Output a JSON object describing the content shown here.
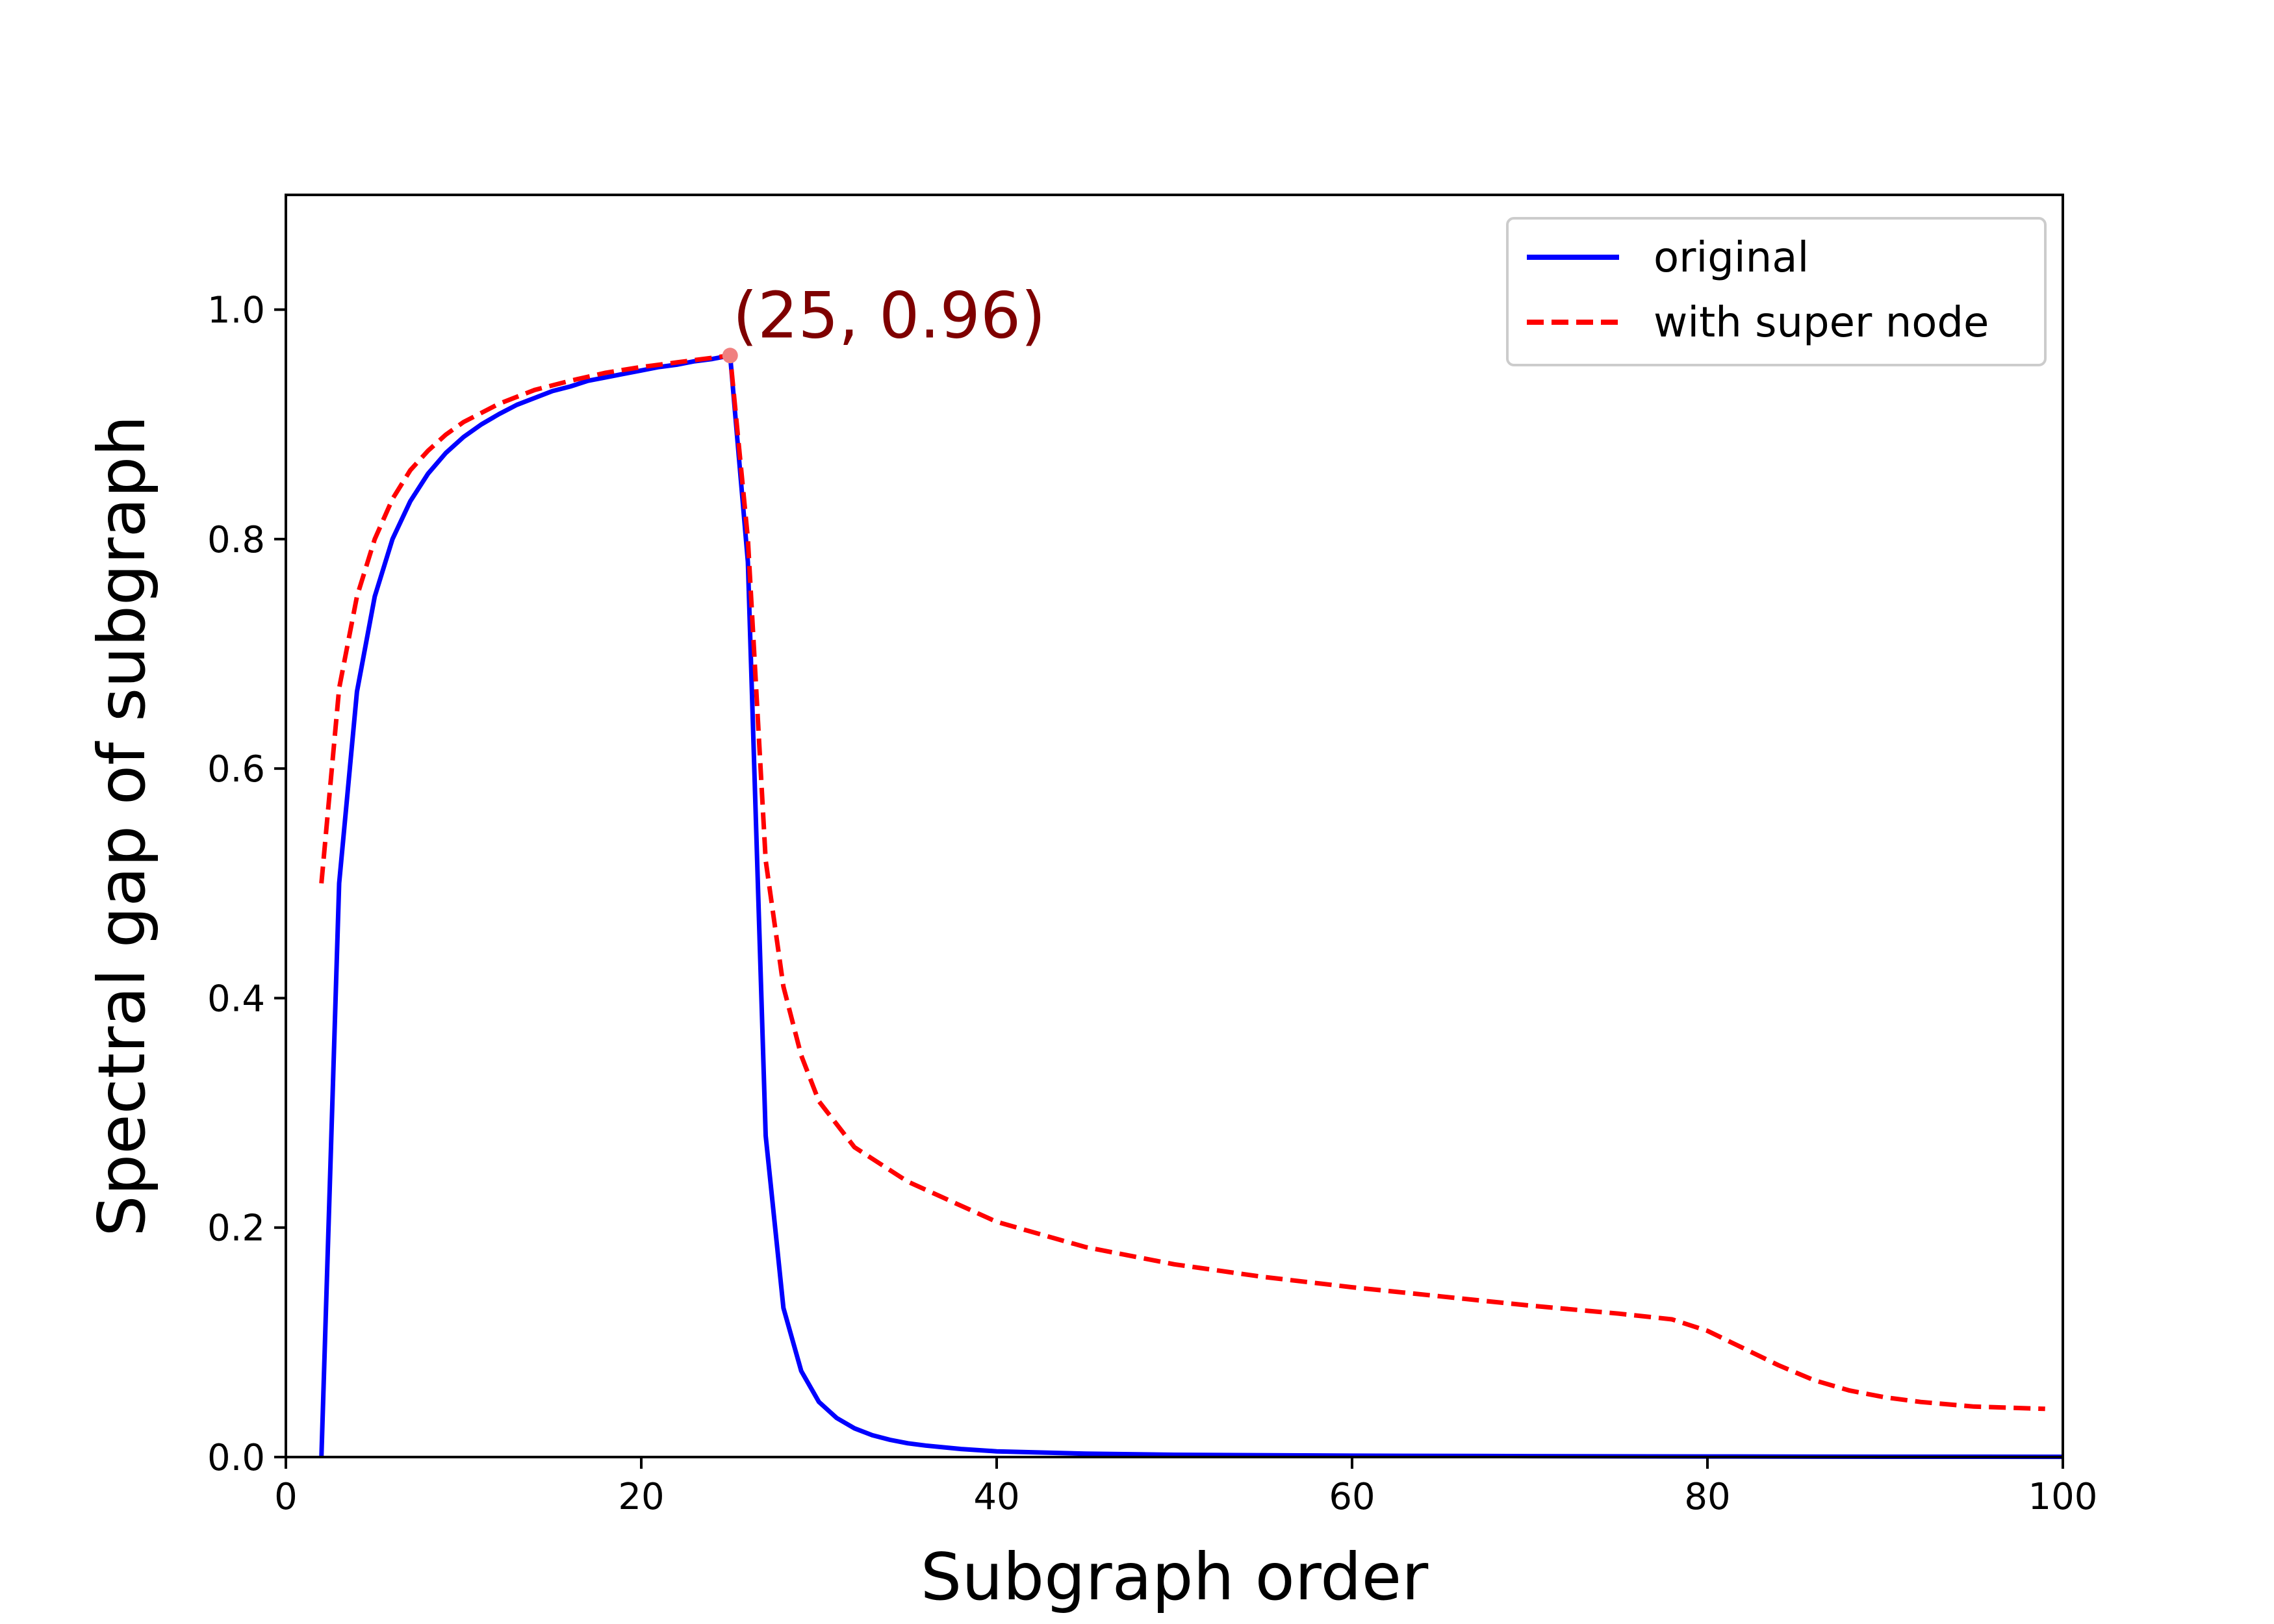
{
  "chart_data": {
    "type": "line",
    "title": "",
    "xlabel": "Subgraph order",
    "ylabel": "Spectral gap of subgraph",
    "xlim": [
      0,
      100
    ],
    "ylim": [
      0,
      1.1
    ],
    "x_ticks": [
      0,
      20,
      40,
      60,
      80,
      100
    ],
    "x_tick_labels": [
      "0",
      "20",
      "40",
      "60",
      "80",
      "100"
    ],
    "y_ticks": [
      0.0,
      0.2,
      0.4,
      0.6,
      0.8,
      1.0
    ],
    "y_tick_labels": [
      "0.0",
      "0.2",
      "0.4",
      "0.6",
      "0.8",
      "1.0"
    ],
    "grid": false,
    "legend_position": "top-right",
    "series": [
      {
        "name": "original",
        "color": "#0000ff",
        "style": "solid",
        "x": [
          2,
          3,
          4,
          5,
          6,
          7,
          8,
          9,
          10,
          11,
          12,
          13,
          14,
          15,
          16,
          17,
          18,
          19,
          20,
          21,
          22,
          23,
          24,
          25,
          26,
          27,
          28,
          29,
          30,
          31,
          32,
          33,
          34,
          35,
          36,
          38,
          40,
          45,
          50,
          60,
          70,
          80,
          90,
          100
        ],
        "y": [
          0.0,
          0.5,
          0.667,
          0.75,
          0.8,
          0.833,
          0.857,
          0.875,
          0.889,
          0.9,
          0.909,
          0.917,
          0.923,
          0.929,
          0.933,
          0.938,
          0.941,
          0.944,
          0.947,
          0.95,
          0.952,
          0.955,
          0.957,
          0.96,
          0.78,
          0.28,
          0.13,
          0.075,
          0.048,
          0.034,
          0.025,
          0.019,
          0.015,
          0.012,
          0.01,
          0.007,
          0.005,
          0.003,
          0.002,
          0.0012,
          0.0008,
          0.0005,
          0.0003,
          0.0002
        ]
      },
      {
        "name": "with super node",
        "color": "#ff0000",
        "style": "dashed",
        "x": [
          2,
          3,
          4,
          5,
          6,
          7,
          8,
          9,
          10,
          12,
          14,
          16,
          18,
          20,
          22,
          24,
          25,
          26,
          27,
          28,
          29,
          30,
          32,
          35,
          40,
          45,
          50,
          55,
          60,
          65,
          70,
          75,
          78,
          80,
          82,
          84,
          86,
          88,
          90,
          92,
          95,
          99
        ],
        "y": [
          0.5,
          0.67,
          0.75,
          0.8,
          0.835,
          0.86,
          0.877,
          0.891,
          0.902,
          0.918,
          0.93,
          0.938,
          0.945,
          0.95,
          0.954,
          0.958,
          0.96,
          0.8,
          0.52,
          0.41,
          0.35,
          0.31,
          0.27,
          0.24,
          0.205,
          0.183,
          0.168,
          0.157,
          0.148,
          0.14,
          0.132,
          0.125,
          0.12,
          0.11,
          0.095,
          0.08,
          0.067,
          0.058,
          0.052,
          0.048,
          0.044,
          0.042
        ]
      }
    ],
    "annotation": {
      "text": "(25, 0.96)",
      "x": 25,
      "y": 0.96,
      "point_color": "#f08080",
      "text_color": "#7f0000"
    }
  }
}
